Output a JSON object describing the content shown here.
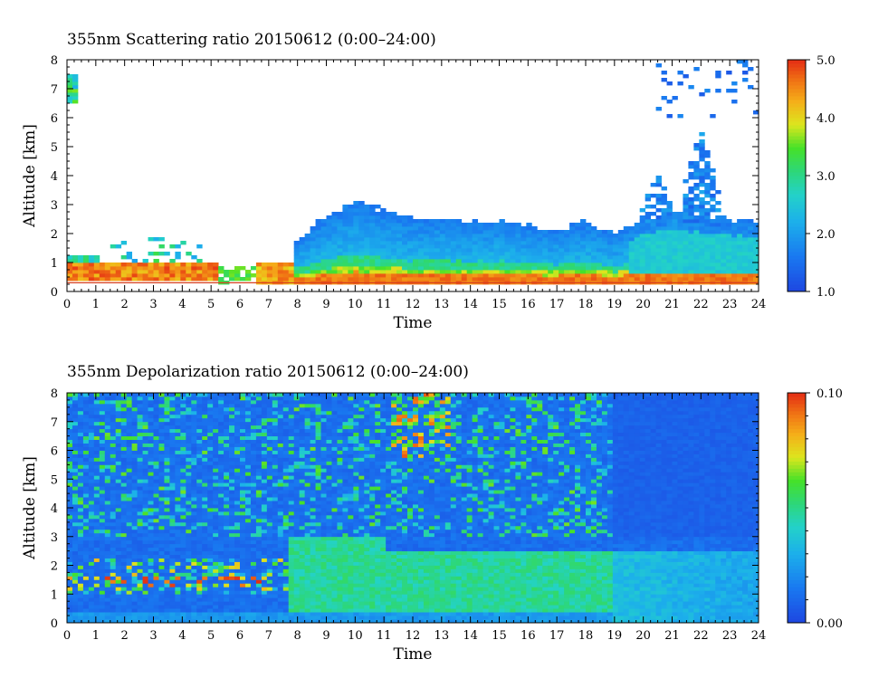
{
  "chart_data": [
    {
      "type": "heatmap",
      "title": "355nm Scattering ratio  20150612 (0:00–24:00)",
      "xlabel": "Time",
      "ylabel": "Altitude [km]",
      "xlim": [
        0,
        24
      ],
      "ylim": [
        0,
        8
      ],
      "xticks": [
        "0",
        "1",
        "2",
        "3",
        "4",
        "5",
        "6",
        "7",
        "8",
        "9",
        "10",
        "11",
        "12",
        "13",
        "14",
        "15",
        "16",
        "17",
        "18",
        "19",
        "20",
        "21",
        "22",
        "23",
        "24"
      ],
      "yticks": [
        "0",
        "1",
        "2",
        "3",
        "4",
        "5",
        "6",
        "7",
        "8"
      ],
      "colorbar": {
        "min": 1.0,
        "max": 5.0,
        "ticks": [
          "1.0",
          "2.0",
          "3.0",
          "4.0",
          "5.0"
        ]
      },
      "colormap": [
        "#1f4fe0",
        "#1a8ff0",
        "#20c8e8",
        "#2ed87a",
        "#3cde2a",
        "#e8e81a",
        "#f5b21a",
        "#f07a18",
        "#e83a12"
      ],
      "features": {
        "boundary_layer_top_km": [
          [
            0,
            1.2
          ],
          [
            2,
            1.0
          ],
          [
            4,
            0.9
          ],
          [
            6,
            0.85
          ],
          [
            8,
            1.8
          ],
          [
            9,
            2.6
          ],
          [
            10,
            3.1
          ],
          [
            11,
            2.8
          ],
          [
            12,
            2.5
          ],
          [
            13,
            2.5
          ],
          [
            14,
            2.4
          ],
          [
            15,
            2.5
          ],
          [
            16,
            2.3
          ],
          [
            17,
            2.1
          ],
          [
            18,
            2.4
          ],
          [
            19,
            2.0
          ],
          [
            20,
            2.5
          ],
          [
            21,
            2.8
          ],
          [
            22,
            2.6
          ],
          [
            23,
            2.5
          ],
          [
            24,
            2.4
          ]
        ],
        "cirrus_plumes": [
          {
            "t_center": 20.5,
            "top_km": 4.2
          },
          {
            "t_center": 22.0,
            "top_km": 5.6
          }
        ],
        "high_aerosol_layer_0_5": {
          "range_km": [
            0.3,
            1.0
          ],
          "value": "4.5–5.0"
        }
      }
    },
    {
      "type": "heatmap",
      "title": "355nm Depolarization ratio  20150612 (0:00–24:00)",
      "xlabel": "Time",
      "ylabel": "Altitude [km]",
      "xlim": [
        0,
        24
      ],
      "ylim": [
        0,
        8
      ],
      "xticks": [
        "0",
        "1",
        "2",
        "3",
        "4",
        "5",
        "6",
        "7",
        "8",
        "9",
        "10",
        "11",
        "12",
        "13",
        "14",
        "15",
        "16",
        "17",
        "18",
        "19",
        "20",
        "21",
        "22",
        "23",
        "24"
      ],
      "yticks": [
        "0",
        "1",
        "2",
        "3",
        "4",
        "5",
        "6",
        "7",
        "8"
      ],
      "colorbar": {
        "min": 0.0,
        "max": 0.1,
        "ticks": [
          "0.00",
          "0.10"
        ]
      },
      "colormap": [
        "#1f4fe0",
        "#1a8ff0",
        "#20c8e8",
        "#2ed87a",
        "#3cde2a",
        "#e8e81a",
        "#f5b21a",
        "#f07a18",
        "#e83a12"
      ],
      "features": {
        "dust_layer_km": [
          0.3,
          3.0
        ],
        "dust_layer_time": [
          7.6,
          19.0
        ],
        "dust_value": "0.03–0.05"
      }
    }
  ]
}
